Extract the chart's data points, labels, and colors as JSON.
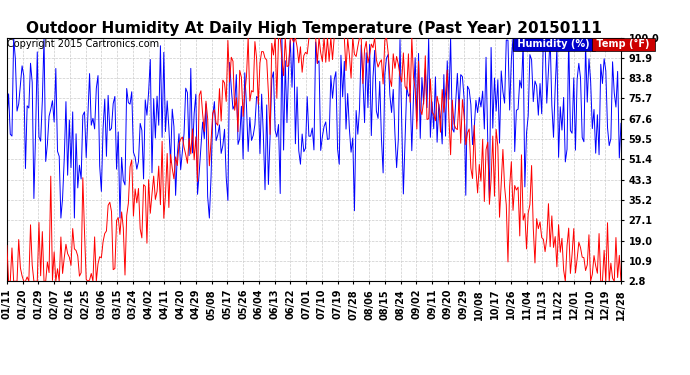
{
  "title": "Outdoor Humidity At Daily High Temperature (Past Year) 20150111",
  "copyright": "Copyright 2015 Cartronics.com",
  "yticks": [
    2.8,
    10.9,
    19.0,
    27.1,
    35.2,
    43.3,
    51.4,
    59.5,
    67.6,
    75.7,
    83.8,
    91.9,
    100.0
  ],
  "ylim": [
    2.8,
    100.0
  ],
  "x_labels": [
    "01/11",
    "01/20",
    "01/29",
    "02/07",
    "02/16",
    "02/25",
    "03/06",
    "03/15",
    "03/24",
    "04/02",
    "04/11",
    "04/20",
    "04/29",
    "05/08",
    "05/17",
    "05/26",
    "06/04",
    "06/13",
    "06/22",
    "07/01",
    "07/10",
    "07/19",
    "07/28",
    "08/06",
    "08/15",
    "08/24",
    "09/02",
    "09/11",
    "09/20",
    "09/29",
    "10/08",
    "10/17",
    "10/26",
    "11/04",
    "11/13",
    "11/22",
    "12/01",
    "12/10",
    "12/19",
    "12/28"
  ],
  "bg_color": "#ffffff",
  "grid_color": "#cccccc",
  "humidity_color": "#0000ff",
  "temp_color": "#ff0000",
  "legend_humidity_bg": "#0000cc",
  "legend_temp_bg": "#cc0000",
  "title_fontsize": 11,
  "tick_fontsize": 7,
  "copyright_fontsize": 7
}
